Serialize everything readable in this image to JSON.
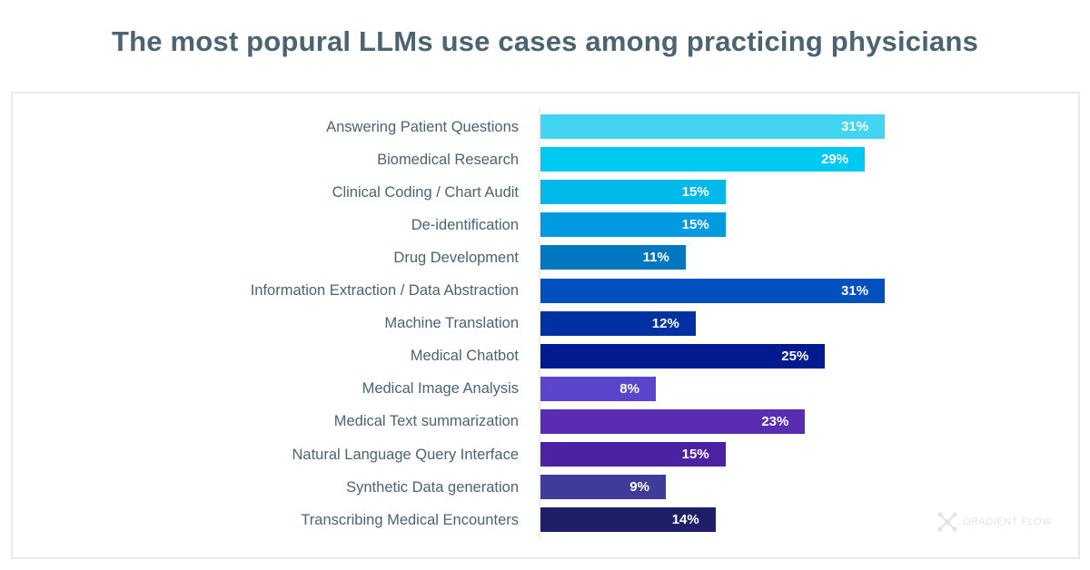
{
  "chart_data": {
    "type": "bar",
    "orientation": "horizontal",
    "title": "The most popural LLMs use cases among practicing physicians",
    "categories": [
      "Answering Patient Questions",
      "Biomedical Research",
      "Clinical Coding / Chart Audit",
      "De-identification",
      "Drug Development",
      "Information Extraction / Data Abstraction",
      "Machine Translation",
      "Medical Chatbot",
      "Medical Image Analysis",
      "Medical Text summarization",
      "Natural Language Query Interface",
      "Synthetic Data generation",
      "Transcribing Medical Encounters"
    ],
    "values": [
      31,
      29,
      15,
      15,
      11,
      31,
      12,
      25,
      8,
      23,
      15,
      9,
      14
    ],
    "data_labels": [
      "31%",
      "29%",
      "15%",
      "15%",
      "11%",
      "31%",
      "12%",
      "25%",
      "8%",
      "23%",
      "15%",
      "9%",
      "14%"
    ],
    "colors": [
      "#41d5f1",
      "#00c9f1",
      "#00b9e8",
      "#009ae0",
      "#0077be",
      "#0050bf",
      "#0031a1",
      "#001b90",
      "#5a46cc",
      "#5a2cb1",
      "#4a22a2",
      "#3f3b99",
      "#1f1f68"
    ],
    "unit": "%",
    "xlabel": "",
    "ylabel": "",
    "grid": false,
    "legend": "none"
  },
  "watermark": "GRADIENT FLOW"
}
